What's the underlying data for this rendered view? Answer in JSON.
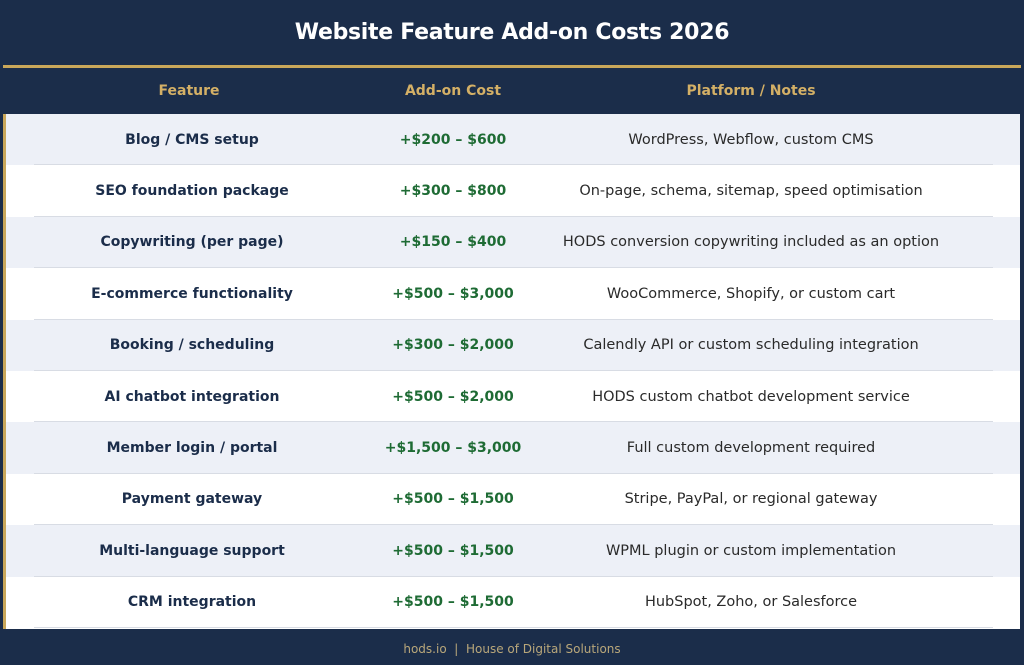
{
  "title": "Website Feature Add-on Costs 2026",
  "colors": {
    "background": "#1b2d4a",
    "accent_gold": "#c9a75a",
    "header_text": "#d4b066",
    "cost_green": "#1e6b34",
    "row_alt": "#edf0f7"
  },
  "table": {
    "headers": [
      "Feature",
      "Add-on Cost",
      "Platform / Notes"
    ],
    "rows": [
      {
        "feature": "Blog / CMS setup",
        "cost": "+$200 – $600",
        "notes": "WordPress, Webflow, custom CMS"
      },
      {
        "feature": "SEO foundation package",
        "cost": "+$300 – $800",
        "notes": "On-page, schema, sitemap, speed optimisation"
      },
      {
        "feature": "Copywriting (per page)",
        "cost": "+$150 – $400",
        "notes": "HODS conversion copywriting included as an option"
      },
      {
        "feature": "E-commerce functionality",
        "cost": "+$500 – $3,000",
        "notes": "WooCommerce, Shopify, or custom cart"
      },
      {
        "feature": "Booking / scheduling",
        "cost": "+$300 – $2,000",
        "notes": "Calendly API or custom scheduling integration"
      },
      {
        "feature": "AI chatbot integration",
        "cost": "+$500 – $2,000",
        "notes": "HODS custom chatbot development service"
      },
      {
        "feature": "Member login / portal",
        "cost": "+$1,500 – $3,000",
        "notes": "Full custom development required"
      },
      {
        "feature": "Payment gateway",
        "cost": "+$500 – $1,500",
        "notes": "Stripe, PayPal, or regional gateway"
      },
      {
        "feature": "Multi-language support",
        "cost": "+$500 – $1,500",
        "notes": "WPML plugin or custom implementation"
      },
      {
        "feature": "CRM integration",
        "cost": "+$500 – $1,500",
        "notes": "HubSpot, Zoho, or Salesforce"
      }
    ]
  },
  "footer": {
    "text": "hods.io  |  House of Digital Solutions"
  }
}
